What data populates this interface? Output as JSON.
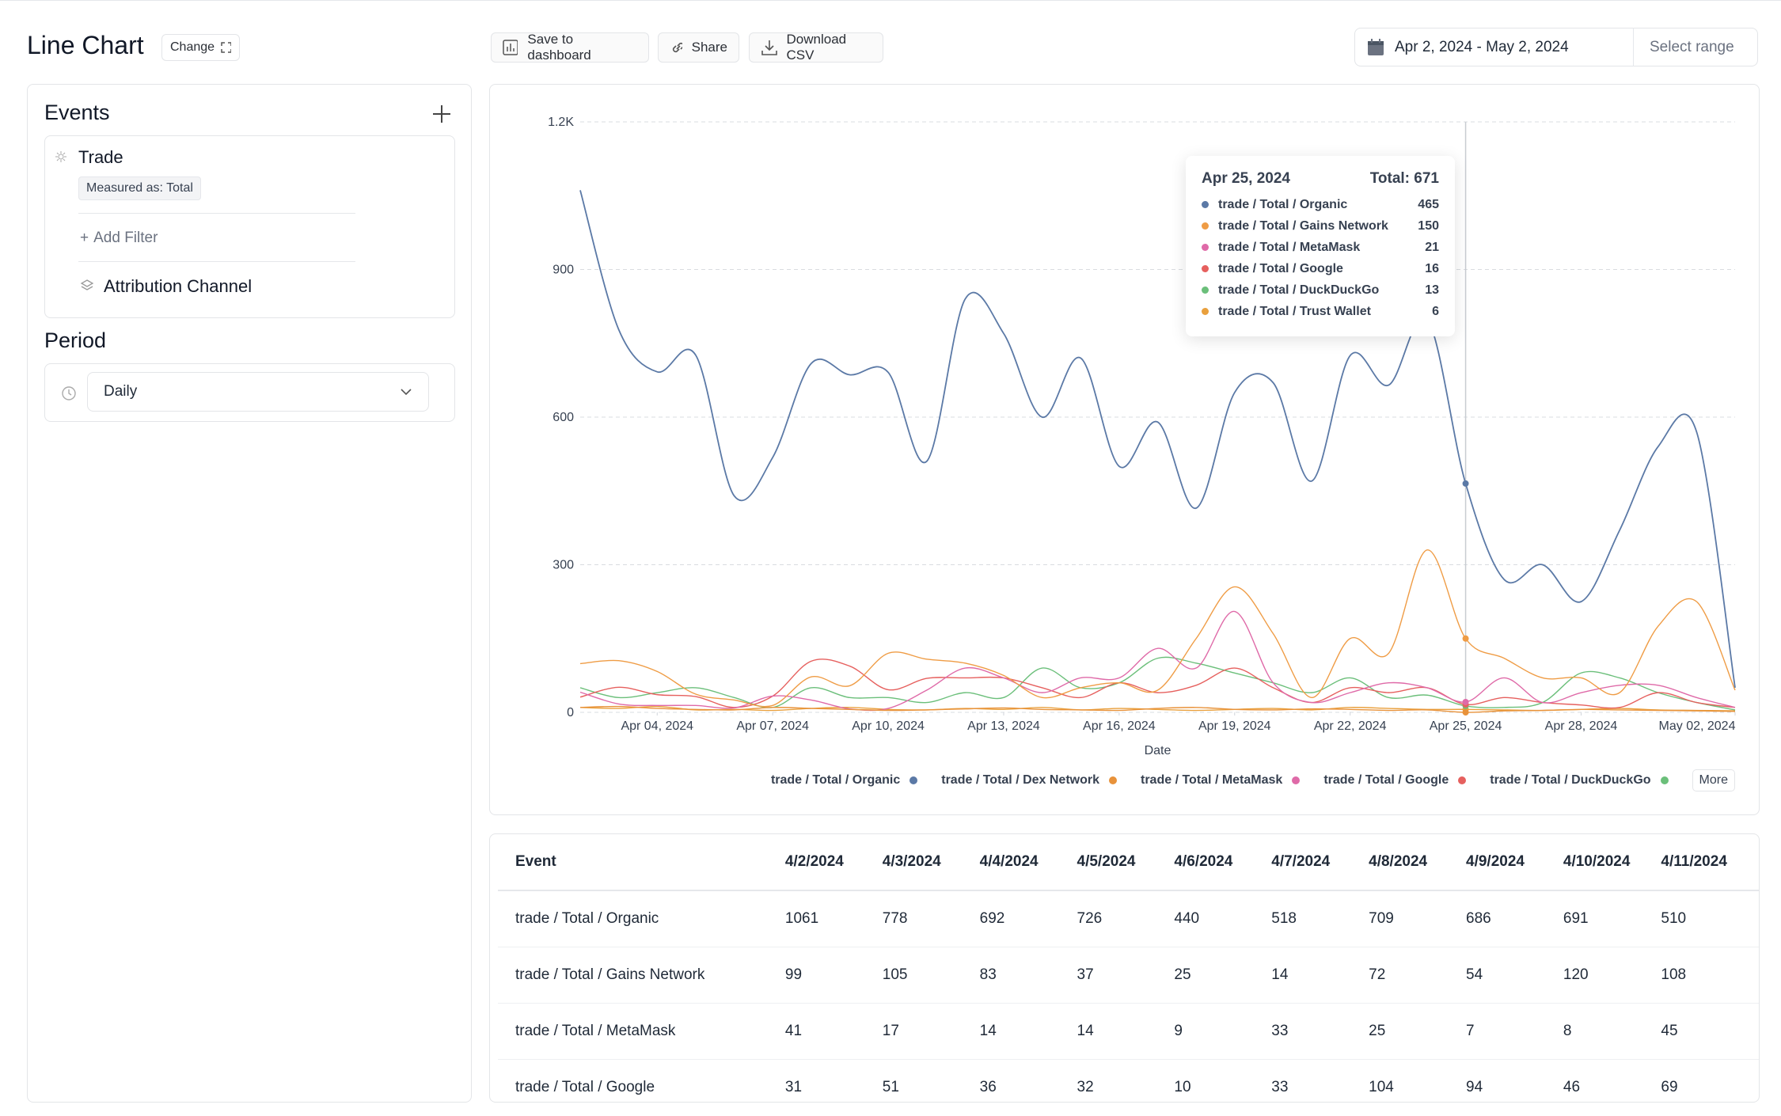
{
  "header": {
    "title": "Line Chart",
    "change": "Change",
    "save": "Save to dashboard",
    "share": "Share",
    "download": "Download CSV",
    "date_range": "Apr 2, 2024 - May 2, 2024",
    "select_range": "Select range"
  },
  "sidebar": {
    "events_title": "Events",
    "event": {
      "name": "Trade",
      "measured": "Measured as: Total",
      "add_filter": "Add Filter",
      "breakdown": "Attribution Channel"
    },
    "period_title": "Period",
    "period": "Daily"
  },
  "chart_data": {
    "type": "line",
    "x_label": "Date",
    "grid": true,
    "x": [
      "2024-04-02",
      "2024-04-03",
      "2024-04-04",
      "2024-04-05",
      "2024-04-06",
      "2024-04-07",
      "2024-04-08",
      "2024-04-09",
      "2024-04-10",
      "2024-04-11",
      "2024-04-12",
      "2024-04-13",
      "2024-04-14",
      "2024-04-15",
      "2024-04-16",
      "2024-04-17",
      "2024-04-18",
      "2024-04-19",
      "2024-04-20",
      "2024-04-21",
      "2024-04-22",
      "2024-04-23",
      "2024-04-24",
      "2024-04-25",
      "2024-04-26",
      "2024-04-27",
      "2024-04-28",
      "2024-04-29",
      "2024-04-30",
      "2024-05-01",
      "2024-05-02"
    ],
    "xticks": [
      {
        "value": "2024-04-04",
        "label": "Apr 04, 2024"
      },
      {
        "value": "2024-04-07",
        "label": "Apr 07, 2024"
      },
      {
        "value": "2024-04-10",
        "label": "Apr 10, 2024"
      },
      {
        "value": "2024-04-13",
        "label": "Apr 13, 2024"
      },
      {
        "value": "2024-04-16",
        "label": "Apr 16, 2024"
      },
      {
        "value": "2024-04-19",
        "label": "Apr 19, 2024"
      },
      {
        "value": "2024-04-22",
        "label": "Apr 22, 2024"
      },
      {
        "value": "2024-04-25",
        "label": "Apr 25, 2024"
      },
      {
        "value": "2024-04-28",
        "label": "Apr 28, 2024"
      },
      {
        "value": "2024-05-02",
        "label": "May 02, 2024"
      }
    ],
    "ylim": [
      0,
      1200
    ],
    "yticks": [
      0,
      300,
      600,
      900,
      {
        "value": 1200,
        "label": "1.2K"
      }
    ],
    "series": [
      {
        "name": "trade / Total / Organic",
        "color": "#5b79a6",
        "in_legend": true,
        "in_tooltip": true,
        "values": [
          1061,
          778,
          692,
          726,
          440,
          518,
          709,
          686,
          691,
          510,
          840,
          770,
          600,
          720,
          500,
          590,
          415,
          650,
          670,
          470,
          725,
          665,
          800,
          465,
          270,
          300,
          225,
          370,
          540,
          570,
          50
        ]
      },
      {
        "name": "trade / Total / Dex Network",
        "color": "#e8923a",
        "in_legend": true,
        "in_tooltip": false,
        "values": [
          10,
          12,
          8,
          6,
          5,
          10,
          8,
          6,
          4,
          5,
          7,
          9,
          6,
          5,
          4,
          8,
          10,
          6,
          5,
          7,
          6,
          4,
          5,
          0,
          3,
          4,
          6,
          5,
          4,
          3,
          2
        ]
      },
      {
        "name": "trade / Total / Gains Network",
        "color": "#ef9c45",
        "in_legend": false,
        "in_tooltip": true,
        "values": [
          99,
          105,
          83,
          37,
          25,
          14,
          72,
          54,
          120,
          108,
          100,
          75,
          30,
          50,
          60,
          45,
          150,
          255,
          160,
          30,
          150,
          120,
          330,
          150,
          110,
          70,
          70,
          40,
          175,
          225,
          45
        ]
      },
      {
        "name": "trade / Total / MetaMask",
        "color": "#df6aa8",
        "in_legend": true,
        "in_tooltip": true,
        "values": [
          41,
          17,
          14,
          14,
          9,
          33,
          25,
          7,
          8,
          45,
          90,
          70,
          40,
          70,
          70,
          130,
          90,
          205,
          60,
          20,
          40,
          60,
          50,
          21,
          70,
          20,
          40,
          55,
          55,
          30,
          10
        ]
      },
      {
        "name": "trade / Total / Google",
        "color": "#e6605e",
        "in_legend": true,
        "in_tooltip": true,
        "values": [
          31,
          51,
          36,
          32,
          10,
          33,
          104,
          94,
          46,
          69,
          70,
          70,
          50,
          30,
          60,
          40,
          55,
          90,
          50,
          20,
          50,
          40,
          50,
          16,
          30,
          20,
          15,
          10,
          40,
          20,
          10
        ]
      },
      {
        "name": "trade / Total / DuckDuckGo",
        "color": "#6bbf7a",
        "in_legend": true,
        "in_tooltip": true,
        "values": [
          50,
          30,
          40,
          50,
          30,
          10,
          50,
          30,
          30,
          20,
          40,
          30,
          90,
          50,
          60,
          110,
          100,
          80,
          60,
          40,
          70,
          30,
          35,
          13,
          10,
          20,
          80,
          70,
          40,
          20,
          5
        ]
      },
      {
        "name": "trade / Total / Trust Wallet",
        "color": "#e9a03d",
        "in_legend": false,
        "in_tooltip": true,
        "values": [
          10,
          8,
          12,
          5,
          6,
          4,
          8,
          10,
          6,
          5,
          8,
          6,
          10,
          5,
          8,
          6,
          4,
          6,
          8,
          5,
          10,
          8,
          6,
          6,
          5,
          4,
          6,
          8,
          5,
          4,
          3
        ]
      }
    ],
    "legend_more": "More",
    "tooltip": {
      "x": "2024-04-25",
      "date": "Apr 25, 2024",
      "total_label": "Total:",
      "total": 671
    }
  },
  "table": {
    "header": "Event",
    "columns": [
      "4/2/2024",
      "4/3/2024",
      "4/4/2024",
      "4/5/2024",
      "4/6/2024",
      "4/7/2024",
      "4/8/2024",
      "4/9/2024",
      "4/10/2024",
      "4/11/2024"
    ],
    "rows": [
      {
        "event": "trade / Total / Organic",
        "values": [
          1061,
          778,
          692,
          726,
          440,
          518,
          709,
          686,
          691,
          510
        ]
      },
      {
        "event": "trade / Total / Gains Network",
        "values": [
          99,
          105,
          83,
          37,
          25,
          14,
          72,
          54,
          120,
          108
        ]
      },
      {
        "event": "trade / Total / MetaMask",
        "values": [
          41,
          17,
          14,
          14,
          9,
          33,
          25,
          7,
          8,
          45
        ]
      },
      {
        "event": "trade / Total / Google",
        "values": [
          31,
          51,
          36,
          32,
          10,
          33,
          104,
          94,
          46,
          69
        ]
      }
    ]
  }
}
